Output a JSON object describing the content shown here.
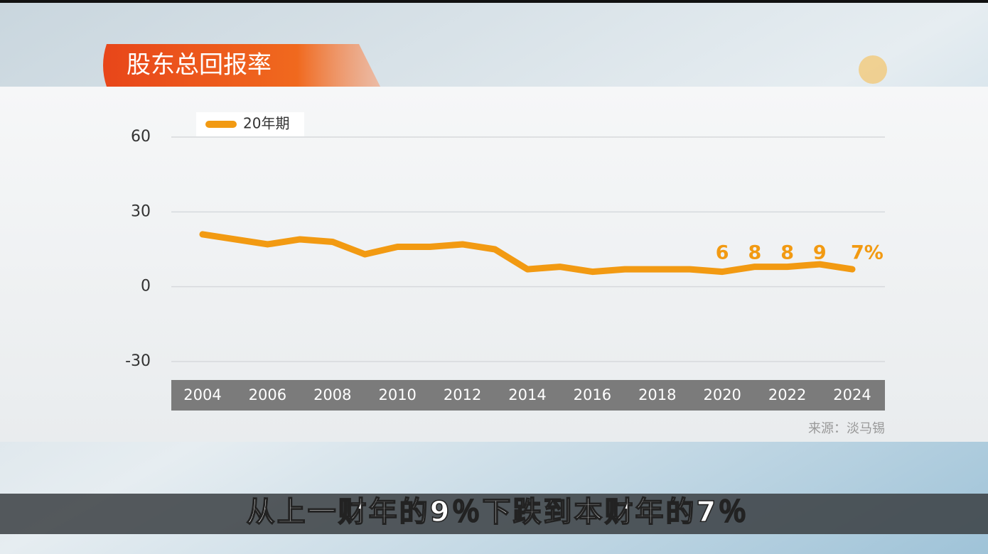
{
  "chart_data": {
    "type": "line",
    "title": "股东总回报率",
    "x": [
      2004,
      2005,
      2006,
      2007,
      2008,
      2009,
      2010,
      2011,
      2012,
      2013,
      2014,
      2015,
      2016,
      2017,
      2018,
      2019,
      2020,
      2021,
      2022,
      2023,
      2024
    ],
    "series": [
      {
        "name": "20年期",
        "color": "#f29a12",
        "values": [
          21,
          19,
          17,
          19,
          18,
          13,
          16,
          16,
          17,
          15,
          7,
          8,
          6,
          7,
          7,
          7,
          6,
          8,
          8,
          9,
          7
        ],
        "value_labels": [
          null,
          null,
          null,
          null,
          null,
          null,
          null,
          null,
          null,
          null,
          null,
          null,
          null,
          null,
          null,
          null,
          "6",
          "8",
          "8",
          "9",
          "7%"
        ]
      }
    ],
    "xlim": [
      2004,
      2024
    ],
    "xticks": [
      2004,
      2006,
      2008,
      2010,
      2012,
      2014,
      2016,
      2018,
      2020,
      2022,
      2024
    ],
    "ylim": [
      -30,
      60
    ],
    "yticks": [
      -30,
      0,
      30,
      60
    ],
    "grid": true,
    "source": "来源：淡马锡"
  },
  "caption": "从上一财年的9％下跌到本财年的7％"
}
